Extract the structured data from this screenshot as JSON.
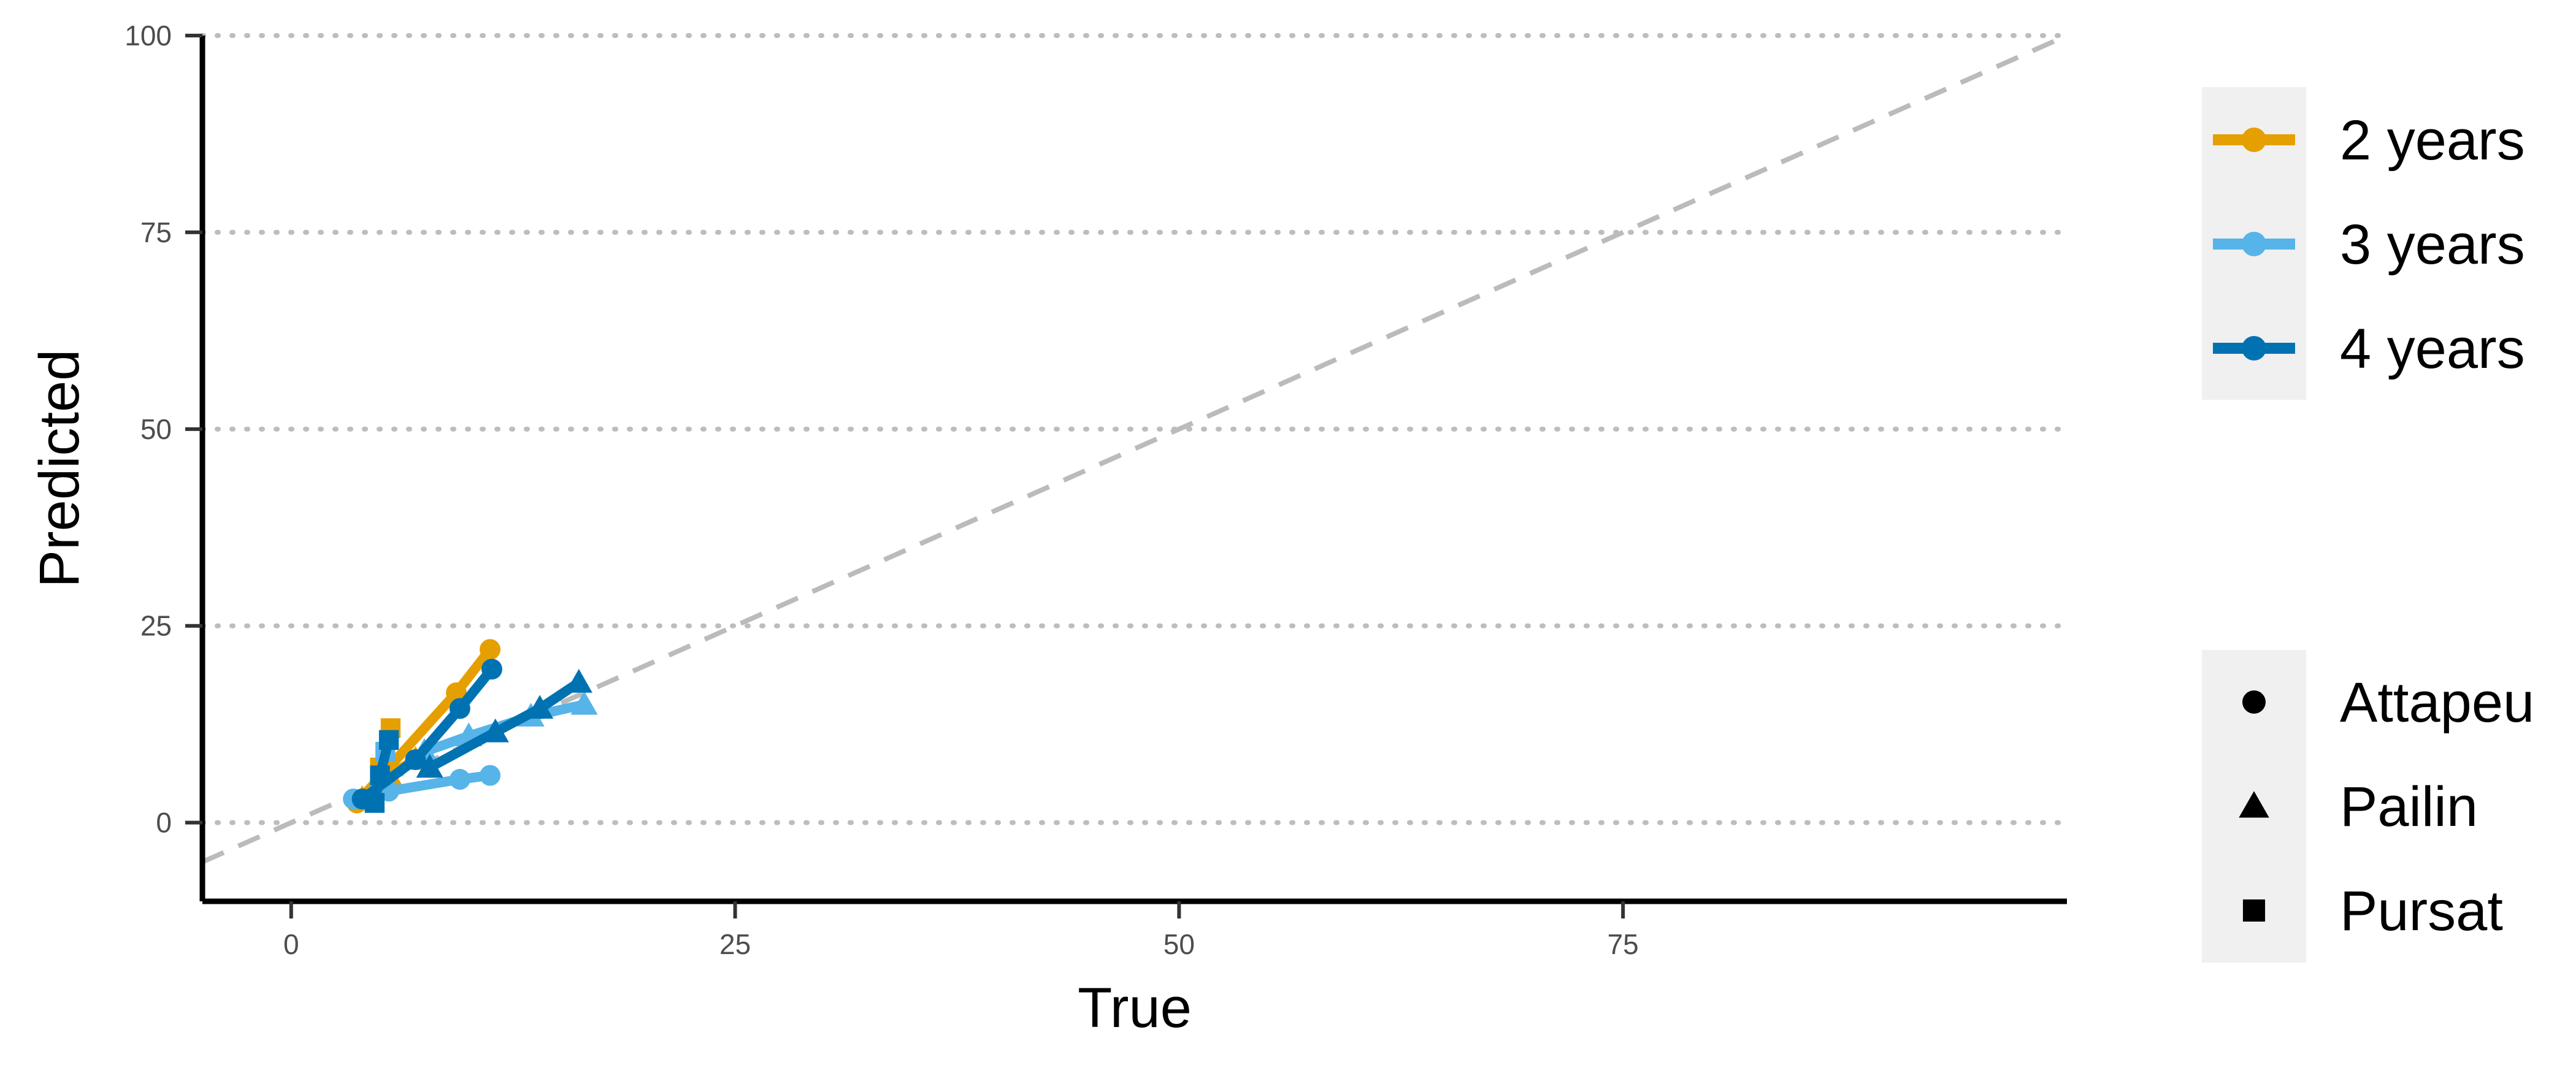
{
  "chart_data": {
    "type": "line",
    "xlabel": "True",
    "ylabel": "Predicted",
    "xlim": [
      -5,
      100
    ],
    "ylim": [
      -10,
      100
    ],
    "x_ticks": [
      0,
      25,
      50,
      75
    ],
    "y_ticks": [
      0,
      25,
      50,
      75,
      100
    ],
    "grid": "horizontal dotted",
    "reference_line": {
      "style": "dashed",
      "color": "#bbbbbb",
      "slope": 1,
      "intercept": 0
    },
    "legend_position": "right",
    "series": [
      {
        "name": "2 years",
        "location": "Attapeu",
        "color": "#E69F00",
        "marker": "circle",
        "x": [
          3.7,
          9.3,
          11.2
        ],
        "y": [
          2.5,
          16.5,
          22.0
        ]
      },
      {
        "name": "2 years",
        "location": "Pailin",
        "color": "#E69F00",
        "marker": "triangle",
        "x": [
          4.0,
          5.5,
          7.0
        ],
        "y": [
          3.0,
          6.0,
          8.0
        ]
      },
      {
        "name": "2 years",
        "location": "Pursat",
        "color": "#E69F00",
        "marker": "square",
        "x": [
          4.5,
          5.0,
          5.6
        ],
        "y": [
          3.0,
          7.0,
          12.0
        ]
      },
      {
        "name": "3 years",
        "location": "Attapeu",
        "color": "#56B4E9",
        "marker": "circle",
        "x": [
          3.5,
          5.5,
          9.5,
          11.2
        ],
        "y": [
          3.0,
          4.0,
          5.5,
          6.0
        ]
      },
      {
        "name": "3 years",
        "location": "Pailin",
        "color": "#56B4E9",
        "marker": "triangle",
        "x": [
          7.5,
          10.0,
          13.5,
          16.5
        ],
        "y": [
          9.0,
          11.0,
          13.5,
          15.0
        ]
      },
      {
        "name": "3 years",
        "location": "Pursat",
        "color": "#56B4E9",
        "marker": "square",
        "x": [
          4.6,
          5.0,
          5.3
        ],
        "y": [
          3.0,
          5.5,
          9.0
        ]
      },
      {
        "name": "4 years",
        "location": "Attapeu",
        "color": "#0072B2",
        "marker": "circle",
        "x": [
          4.0,
          7.0,
          9.5,
          11.3
        ],
        "y": [
          3.0,
          8.0,
          14.5,
          19.5
        ]
      },
      {
        "name": "4 years",
        "location": "Pailin",
        "color": "#0072B2",
        "marker": "triangle",
        "x": [
          7.8,
          11.5,
          14.0,
          16.2
        ],
        "y": [
          7.0,
          11.5,
          14.5,
          17.8
        ]
      },
      {
        "name": "4 years",
        "location": "Pursat",
        "color": "#0072B2",
        "marker": "square",
        "x": [
          4.7,
          5.0,
          5.5
        ],
        "y": [
          2.5,
          6.0,
          10.5
        ]
      }
    ]
  },
  "legend_color": {
    "items": [
      {
        "label": "2 years",
        "color": "#E69F00"
      },
      {
        "label": "3 years",
        "color": "#56B4E9"
      },
      {
        "label": "4 years",
        "color": "#0072B2"
      }
    ]
  },
  "legend_shape": {
    "items": [
      {
        "label": "Attapeu",
        "marker": "circle"
      },
      {
        "label": "Pailin",
        "marker": "triangle"
      },
      {
        "label": "Pursat",
        "marker": "square"
      }
    ]
  }
}
